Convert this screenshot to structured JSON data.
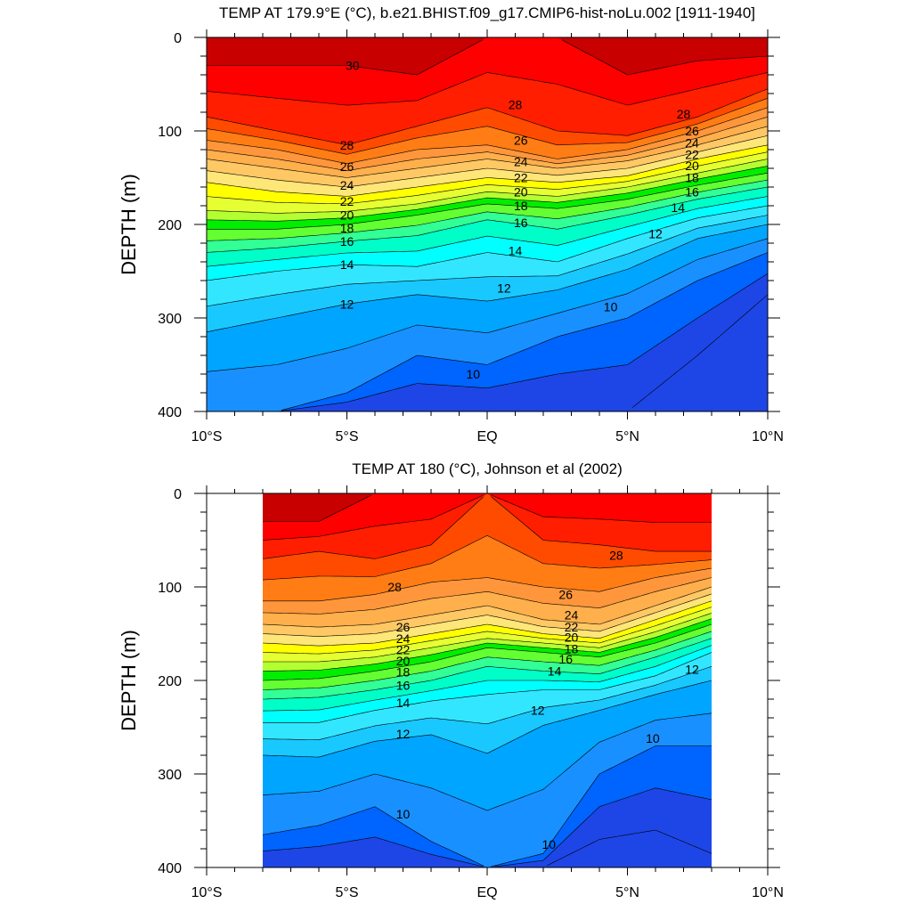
{
  "chart_data": [
    {
      "type": "contour",
      "title": "TEMP AT 179.9°E (°C), b.e21.BHIST.f09_g17.CMIP6-hist-noLu.002 [1911-1940]",
      "ylabel": "DEPTH (m)",
      "xlabel": "",
      "x_tick_labels": [
        "10°S",
        "5°S",
        "EQ",
        "5°N",
        "10°N"
      ],
      "x_ticks": [
        -10,
        -5,
        0,
        5,
        10
      ],
      "y_tick_labels": [
        "0",
        "100",
        "200",
        "300",
        "400"
      ],
      "y_ticks": [
        0,
        100,
        200,
        300,
        400
      ],
      "xlim": [
        -10,
        10
      ],
      "ylim": [
        0,
        400
      ],
      "y_inverted": true,
      "data_extent": [
        -10,
        10
      ],
      "contour_interval": 1,
      "colormap": [
        "#1e46e6",
        "#0064ff",
        "#1990ff",
        "#00a5ff",
        "#19c8ff",
        "#33e6ff",
        "#00ffff",
        "#00ffc8",
        "#32ff96",
        "#64ff32",
        "#00ee00",
        "#b4ff32",
        "#e6ff32",
        "#ffff00",
        "#ffe678",
        "#ffc864",
        "#ffaf4b",
        "#ff963c",
        "#ff7d14",
        "#ff4b00",
        "#ff1e00",
        "#ff0000",
        "#c80000"
      ],
      "isotherm_depths": {
        "x": [
          -10,
          -7.5,
          -5,
          -2.5,
          0,
          2.5,
          5,
          7.5,
          10
        ],
        "t30": [
          30,
          30,
          30,
          40,
          0,
          0,
          40,
          25,
          20
        ],
        "t28": [
          85,
          100,
          115,
          95,
          75,
          100,
          105,
          85,
          55
        ],
        "t26": [
          110,
          120,
          135,
          120,
          115,
          130,
          120,
          100,
          75
        ],
        "t24": [
          130,
          140,
          150,
          140,
          130,
          140,
          132,
          115,
          95
        ],
        "t22": [
          155,
          165,
          170,
          160,
          150,
          155,
          148,
          130,
          115
        ],
        "t20": [
          185,
          188,
          186,
          178,
          165,
          170,
          160,
          145,
          130
        ],
        "t18": [
          205,
          205,
          200,
          190,
          178,
          183,
          173,
          158,
          145
        ],
        "t16": [
          230,
          225,
          218,
          212,
          195,
          205,
          190,
          173,
          160
        ],
        "t14": [
          260,
          250,
          243,
          245,
          230,
          240,
          215,
          193,
          180
        ],
        "t12": [
          315,
          300,
          285,
          275,
          282,
          270,
          248,
          215,
          200
        ],
        "t10": [
          400,
          400,
          380,
          340,
          350,
          320,
          300,
          260,
          230
        ],
        "t8": [
          400,
          400,
          400,
          400,
          400,
          400,
          400,
          340,
          275
        ]
      },
      "contour_labels": [
        {
          "text": "30",
          "x": -4.8,
          "depth": 30
        },
        {
          "text": "28",
          "x": -5.0,
          "depth": 115
        },
        {
          "text": "26",
          "x": -5.0,
          "depth": 138
        },
        {
          "text": "24",
          "x": -5.0,
          "depth": 158
        },
        {
          "text": "22",
          "x": -5.0,
          "depth": 175
        },
        {
          "text": "20",
          "x": -5.0,
          "depth": 190
        },
        {
          "text": "18",
          "x": -5.0,
          "depth": 204
        },
        {
          "text": "16",
          "x": -5.0,
          "depth": 218
        },
        {
          "text": "14",
          "x": -5.0,
          "depth": 243
        },
        {
          "text": "12",
          "x": -5.0,
          "depth": 285
        },
        {
          "text": "28",
          "x": 1.0,
          "depth": 72
        },
        {
          "text": "26",
          "x": 1.2,
          "depth": 110
        },
        {
          "text": "24",
          "x": 1.2,
          "depth": 133
        },
        {
          "text": "22",
          "x": 1.2,
          "depth": 150
        },
        {
          "text": "20",
          "x": 1.2,
          "depth": 165
        },
        {
          "text": "18",
          "x": 1.2,
          "depth": 180
        },
        {
          "text": "16",
          "x": 1.2,
          "depth": 198
        },
        {
          "text": "14",
          "x": 1.0,
          "depth": 228
        },
        {
          "text": "12",
          "x": 0.6,
          "depth": 268
        },
        {
          "text": "10",
          "x": -0.5,
          "depth": 360
        },
        {
          "text": "28",
          "x": 7.0,
          "depth": 82
        },
        {
          "text": "26",
          "x": 7.3,
          "depth": 100
        },
        {
          "text": "24",
          "x": 7.3,
          "depth": 113
        },
        {
          "text": "22",
          "x": 7.3,
          "depth": 125
        },
        {
          "text": "20",
          "x": 7.3,
          "depth": 137
        },
        {
          "text": "18",
          "x": 7.3,
          "depth": 150
        },
        {
          "text": "16",
          "x": 7.3,
          "depth": 165
        },
        {
          "text": "14",
          "x": 6.8,
          "depth": 182
        },
        {
          "text": "12",
          "x": 6.0,
          "depth": 210
        },
        {
          "text": "10",
          "x": 4.4,
          "depth": 288
        }
      ]
    },
    {
      "type": "contour",
      "title": "TEMP AT 180 (°C), Johnson et al (2002)",
      "ylabel": "DEPTH (m)",
      "xlabel": "",
      "x_tick_labels": [
        "10°S",
        "5°S",
        "EQ",
        "5°N",
        "10°N"
      ],
      "x_ticks": [
        -10,
        -5,
        0,
        5,
        10
      ],
      "y_tick_labels": [
        "0",
        "100",
        "200",
        "300",
        "400"
      ],
      "y_ticks": [
        0,
        100,
        200,
        300,
        400
      ],
      "xlim": [
        -10,
        10
      ],
      "ylim": [
        0,
        400
      ],
      "y_inverted": true,
      "data_extent": [
        -8,
        8
      ],
      "contour_interval": 1,
      "isotherm_depths": {
        "x": [
          -8,
          -6,
          -4,
          -2,
          0,
          2,
          4,
          6,
          8
        ],
        "t30": [
          30,
          30,
          0,
          0,
          0,
          0,
          0,
          0,
          0
        ],
        "t28": [
          70,
          62,
          70,
          55,
          0,
          50,
          55,
          62,
          62
        ],
        "t26": [
          115,
          115,
          108,
          95,
          90,
          100,
          105,
          90,
          80
        ],
        "t24": [
          140,
          143,
          140,
          130,
          120,
          135,
          140,
          120,
          100
        ],
        "t22": [
          160,
          163,
          160,
          150,
          140,
          150,
          155,
          135,
          115
        ],
        "t20": [
          180,
          180,
          175,
          165,
          155,
          160,
          165,
          148,
          128
        ],
        "t18": [
          200,
          198,
          190,
          180,
          165,
          170,
          175,
          160,
          140
        ],
        "t16": [
          220,
          218,
          210,
          200,
          185,
          190,
          193,
          175,
          155
        ],
        "t14": [
          245,
          245,
          232,
          222,
          215,
          210,
          210,
          195,
          170
        ],
        "t12": [
          280,
          282,
          265,
          258,
          278,
          248,
          232,
          215,
          200
        ],
        "t10": [
          365,
          355,
          335,
          372,
          400,
          385,
          300,
          270,
          270
        ],
        "t8": [
          400,
          400,
          400,
          400,
          400,
          400,
          370,
          360,
          385
        ]
      },
      "contour_labels": [
        {
          "text": "28",
          "x": -3.3,
          "depth": 100
        },
        {
          "text": "26",
          "x": -3.0,
          "depth": 143
        },
        {
          "text": "24",
          "x": -3.0,
          "depth": 155
        },
        {
          "text": "22",
          "x": -3.0,
          "depth": 167
        },
        {
          "text": "20",
          "x": -3.0,
          "depth": 179
        },
        {
          "text": "18",
          "x": -3.0,
          "depth": 191
        },
        {
          "text": "16",
          "x": -3.0,
          "depth": 205
        },
        {
          "text": "14",
          "x": -3.0,
          "depth": 224
        },
        {
          "text": "12",
          "x": -3.0,
          "depth": 257
        },
        {
          "text": "10",
          "x": -3.0,
          "depth": 343
        },
        {
          "text": "28",
          "x": 4.6,
          "depth": 66
        },
        {
          "text": "26",
          "x": 2.8,
          "depth": 108
        },
        {
          "text": "24",
          "x": 3.0,
          "depth": 130
        },
        {
          "text": "22",
          "x": 3.0,
          "depth": 143
        },
        {
          "text": "20",
          "x": 3.0,
          "depth": 154
        },
        {
          "text": "18",
          "x": 3.0,
          "depth": 166
        },
        {
          "text": "16",
          "x": 2.8,
          "depth": 177
        },
        {
          "text": "14",
          "x": 2.4,
          "depth": 190
        },
        {
          "text": "12",
          "x": 1.8,
          "depth": 232
        },
        {
          "text": "10",
          "x": 5.9,
          "depth": 262
        },
        {
          "text": "12",
          "x": 7.3,
          "depth": 188
        },
        {
          "text": "10",
          "x": 2.2,
          "depth": 375
        }
      ]
    }
  ]
}
